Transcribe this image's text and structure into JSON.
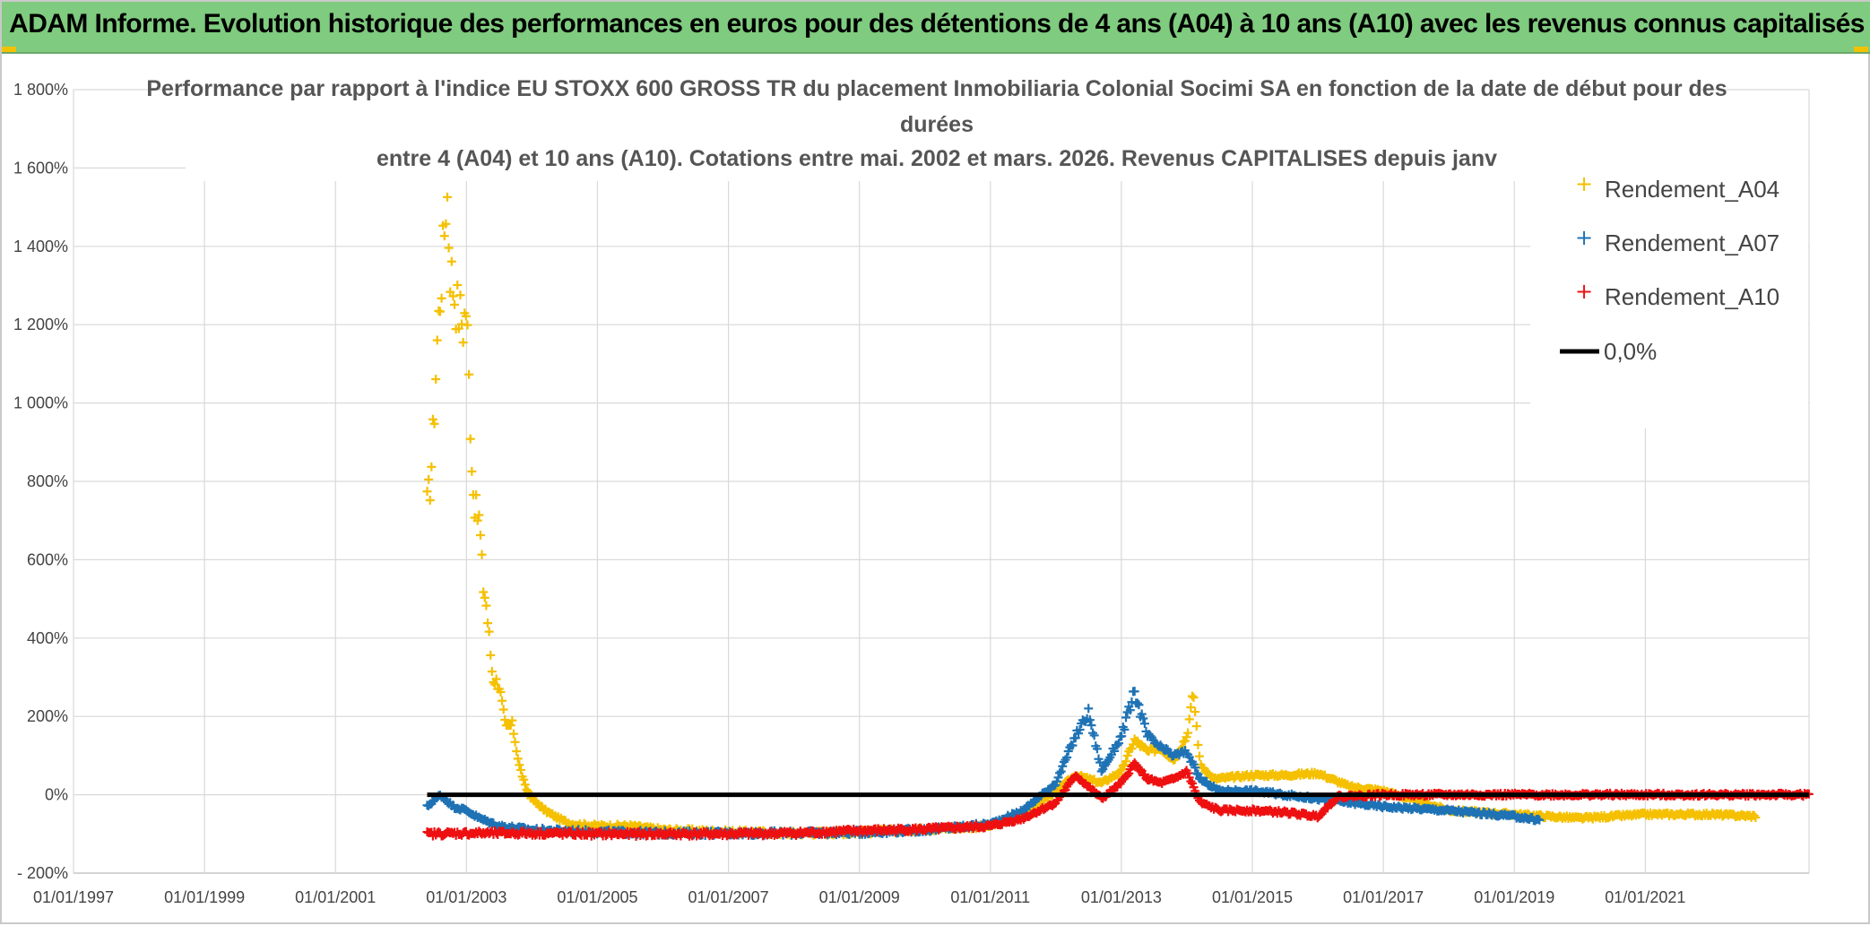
{
  "header": {
    "title": "ADAM Informe. Evolution historique des performances en euros pour des détentions de 4 ans (A04) à 10 ans (A10) avec les revenus connus capitalisés"
  },
  "chart_data": {
    "type": "scatter",
    "title_lines": [
      "Performance par rapport à l'indice EU STOXX 600 GROSS TR  du placement Inmobiliaria Colonial Socimi SA en fonction de la date de début pour des",
      "durées",
      "entre 4 (A04) et 10 ans (A10). Cotations entre mai. 2002 et mars. 2026. Revenus CAPITALISES depuis janv"
    ],
    "x_ticks": [
      "01/01/1997",
      "01/01/1999",
      "01/01/2001",
      "01/01/2003",
      "01/01/2005",
      "01/01/2007",
      "01/01/2009",
      "01/01/2011",
      "01/01/2013",
      "01/01/2015",
      "01/01/2017",
      "01/01/2019",
      "01/01/2021"
    ],
    "y_ticks": [
      "- 200%",
      "0%",
      "200%",
      "400%",
      "600%",
      "800%",
      "1 000%",
      "1 200%",
      "1 400%",
      "1 600%",
      "1 800%"
    ],
    "xlim": [
      1997.0,
      2023.5
    ],
    "ylim": [
      -200,
      1800
    ],
    "grid": true,
    "legend_position": "top-right",
    "colors": {
      "A04": "#f5c000",
      "A07": "#1f73b5",
      "A10": "#ee1111",
      "zero": "#000000"
    },
    "series": [
      {
        "name": "Rendement_A04",
        "key": "A04",
        "points": [
          [
            2002.4,
            740
          ],
          [
            2002.45,
            800
          ],
          [
            2002.5,
            950
          ],
          [
            2002.55,
            1150
          ],
          [
            2002.6,
            1280
          ],
          [
            2002.65,
            1400
          ],
          [
            2002.7,
            1560
          ],
          [
            2002.75,
            1350
          ],
          [
            2002.8,
            1300
          ],
          [
            2002.85,
            1250
          ],
          [
            2002.9,
            1230
          ],
          [
            2002.95,
            1200
          ],
          [
            2003.0,
            1250
          ],
          [
            2003.05,
            1000
          ],
          [
            2003.1,
            780
          ],
          [
            2003.15,
            720
          ],
          [
            2003.2,
            700
          ],
          [
            2003.25,
            540
          ],
          [
            2003.3,
            490
          ],
          [
            2003.4,
            300
          ],
          [
            2003.5,
            280
          ],
          [
            2003.6,
            170
          ],
          [
            2003.7,
            180
          ],
          [
            2003.8,
            80
          ],
          [
            2003.9,
            20
          ],
          [
            2004.0,
            -10
          ],
          [
            2004.2,
            -40
          ],
          [
            2004.4,
            -60
          ],
          [
            2004.6,
            -75
          ],
          [
            2005.0,
            -80
          ],
          [
            2005.5,
            -80
          ],
          [
            2006.0,
            -90
          ],
          [
            2007.0,
            -95
          ],
          [
            2008.0,
            -98
          ],
          [
            2009.0,
            -96
          ],
          [
            2010.0,
            -88
          ],
          [
            2011.0,
            -80
          ],
          [
            2011.5,
            -50
          ],
          [
            2012.0,
            10
          ],
          [
            2012.3,
            50
          ],
          [
            2012.5,
            40
          ],
          [
            2012.7,
            30
          ],
          [
            2013.0,
            60
          ],
          [
            2013.2,
            140
          ],
          [
            2013.4,
            110
          ],
          [
            2013.6,
            120
          ],
          [
            2013.8,
            90
          ],
          [
            2014.0,
            150
          ],
          [
            2014.1,
            260
          ],
          [
            2014.2,
            80
          ],
          [
            2014.4,
            40
          ],
          [
            2015.0,
            50
          ],
          [
            2015.5,
            50
          ],
          [
            2016.0,
            55
          ],
          [
            2016.5,
            20
          ],
          [
            2017.0,
            10
          ],
          [
            2018.0,
            -40
          ],
          [
            2019.0,
            -50
          ],
          [
            2020.0,
            -60
          ],
          [
            2021.0,
            -50
          ],
          [
            2022.0,
            -50
          ],
          [
            2022.7,
            -55
          ]
        ]
      },
      {
        "name": "Rendement_A07",
        "key": "A07",
        "points": [
          [
            2002.4,
            -30
          ],
          [
            2002.6,
            0
          ],
          [
            2002.8,
            -30
          ],
          [
            2003.0,
            -40
          ],
          [
            2003.2,
            -60
          ],
          [
            2003.5,
            -80
          ],
          [
            2004.0,
            -90
          ],
          [
            2005.0,
            -95
          ],
          [
            2006.0,
            -98
          ],
          [
            2007.0,
            -98
          ],
          [
            2008.0,
            -98
          ],
          [
            2009.0,
            -96
          ],
          [
            2010.0,
            -90
          ],
          [
            2011.0,
            -75
          ],
          [
            2011.5,
            -40
          ],
          [
            2012.0,
            30
          ],
          [
            2012.3,
            150
          ],
          [
            2012.5,
            210
          ],
          [
            2012.7,
            60
          ],
          [
            2013.0,
            150
          ],
          [
            2013.2,
            260
          ],
          [
            2013.4,
            150
          ],
          [
            2013.6,
            120
          ],
          [
            2013.8,
            100
          ],
          [
            2014.0,
            110
          ],
          [
            2014.2,
            40
          ],
          [
            2014.5,
            10
          ],
          [
            2015.0,
            10
          ],
          [
            2015.5,
            0
          ],
          [
            2016.0,
            -10
          ],
          [
            2016.5,
            -20
          ],
          [
            2017.0,
            -30
          ],
          [
            2018.0,
            -40
          ],
          [
            2019.0,
            -55
          ],
          [
            2019.4,
            -65
          ]
        ]
      },
      {
        "name": "Rendement_A10",
        "key": "A10",
        "points": [
          [
            2002.4,
            -100
          ],
          [
            2003.0,
            -98
          ],
          [
            2004.0,
            -98
          ],
          [
            2005.0,
            -100
          ],
          [
            2006.0,
            -100
          ],
          [
            2007.0,
            -100
          ],
          [
            2008.0,
            -98
          ],
          [
            2009.0,
            -92
          ],
          [
            2010.0,
            -88
          ],
          [
            2011.0,
            -80
          ],
          [
            2011.5,
            -60
          ],
          [
            2012.0,
            -20
          ],
          [
            2012.3,
            50
          ],
          [
            2012.5,
            20
          ],
          [
            2012.7,
            -10
          ],
          [
            2013.0,
            30
          ],
          [
            2013.2,
            80
          ],
          [
            2013.4,
            40
          ],
          [
            2013.6,
            30
          ],
          [
            2013.8,
            40
          ],
          [
            2014.0,
            60
          ],
          [
            2014.2,
            -20
          ],
          [
            2014.5,
            -40
          ],
          [
            2015.0,
            -40
          ],
          [
            2015.5,
            -45
          ],
          [
            2016.0,
            -55
          ],
          [
            2016.3,
            -5
          ],
          [
            2017.0,
            0
          ],
          [
            2018.0,
            0
          ],
          [
            2019.0,
            0
          ],
          [
            2020.0,
            0
          ],
          [
            2021.0,
            0
          ],
          [
            2022.0,
            0
          ],
          [
            2023.0,
            0
          ],
          [
            2023.5,
            0
          ]
        ]
      }
    ],
    "zero_line": {
      "name": "0,0%",
      "x_range": [
        2002.4,
        2023.5
      ],
      "y": 0
    }
  }
}
